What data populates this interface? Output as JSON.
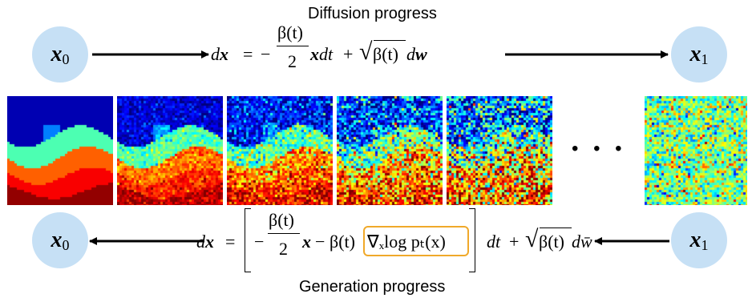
{
  "top_caption": "Diffusion progress",
  "bottom_caption": "Generation progress",
  "nodes": {
    "start": {
      "symbol": "x",
      "sub": "0"
    },
    "end": {
      "symbol": "x",
      "sub": "1"
    }
  },
  "forward_eq": {
    "lhs": "dx",
    "equals": "=",
    "minus": "−",
    "frac_num": "β(t)",
    "frac_den": "2",
    "term1": "xdt",
    "plus": "+",
    "sqrt_arg": "β(t)",
    "term2": "dw"
  },
  "reverse_eq": {
    "lhs": "dx",
    "equals": "=",
    "minus": "−",
    "frac_num": "β(t)",
    "frac_den": "2",
    "x_term": "x",
    "minus2": "−",
    "beta": "β(t)",
    "score": "∇ₓlog pₜ(x)",
    "dt": "dt",
    "plus": "+",
    "sqrt_arg": "β(t)",
    "dw": "dw̄"
  },
  "ellipsis": "• • •",
  "colors": {
    "node_fill": "#c6e0f5",
    "score_box": "#f0a92a"
  }
}
